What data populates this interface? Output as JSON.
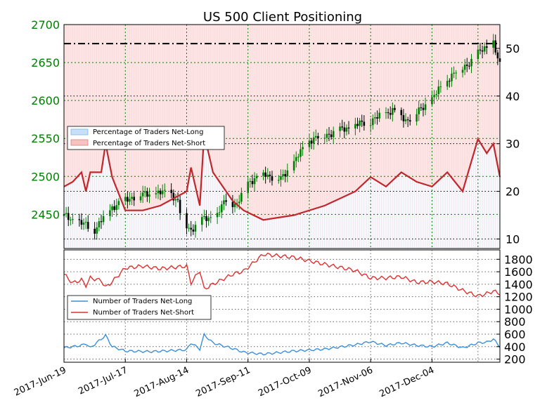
{
  "chart_data": [
    {
      "type": "candlestick",
      "title": "US 500 Client Positioning",
      "y_left": {
        "ticks": [
          2450,
          2500,
          2550,
          2600,
          2650,
          2700
        ],
        "ylim": [
          2405,
          2700
        ]
      },
      "y_right": {
        "ticks": [
          10,
          20,
          30,
          40,
          50
        ],
        "ylim": [
          8,
          55
        ]
      },
      "x_ticks": [
        "2017-Jun-19",
        "2017-Jul-17",
        "2017-Aug-14",
        "2017-Sep-11",
        "2017-Oct-09",
        "2017-Nov-06",
        "2017-Dec-04"
      ],
      "reference_line": 51,
      "legend": [
        "Percentage of Traders Net-Long",
        "Percentage of Traders Net-Short"
      ],
      "legend_position": "center-left",
      "grid": true,
      "colors": {
        "price_axis": "#008000",
        "net_short": "#c0272d",
        "net_long_fill": "#dce8f8",
        "net_short_fill": "#fde5e5",
        "candle_up": "#008000",
        "candle_down": "#000000"
      },
      "price_close_series": [
        {
          "day": 0,
          "close": 2448
        },
        {
          "day": 14,
          "close": 2430
        },
        {
          "day": 22,
          "close": 2460
        },
        {
          "day": 32,
          "close": 2474
        },
        {
          "day": 42,
          "close": 2478
        },
        {
          "day": 49,
          "close": 2478
        },
        {
          "day": 52,
          "close": 2466
        },
        {
          "day": 54,
          "close": 2440
        },
        {
          "day": 58,
          "close": 2430
        },
        {
          "day": 62,
          "close": 2442
        },
        {
          "day": 70,
          "close": 2449
        },
        {
          "day": 74,
          "close": 2470
        },
        {
          "day": 79,
          "close": 2462
        },
        {
          "day": 84,
          "close": 2493
        },
        {
          "day": 92,
          "close": 2503
        },
        {
          "day": 99,
          "close": 2496
        },
        {
          "day": 105,
          "close": 2519
        },
        {
          "day": 112,
          "close": 2548
        },
        {
          "day": 126,
          "close": 2561
        },
        {
          "day": 140,
          "close": 2573
        },
        {
          "day": 150,
          "close": 2588
        },
        {
          "day": 156,
          "close": 2574
        },
        {
          "day": 161,
          "close": 2583
        },
        {
          "day": 168,
          "close": 2602
        },
        {
          "day": 175,
          "close": 2628
        },
        {
          "day": 180,
          "close": 2640
        },
        {
          "day": 186,
          "close": 2652
        },
        {
          "day": 191,
          "close": 2668
        },
        {
          "day": 196,
          "close": 2678
        },
        {
          "day": 198,
          "close": 2650
        }
      ],
      "net_short_pct_series": [
        {
          "day": 0,
          "close": 21
        },
        {
          "day": 4,
          "close": 22
        },
        {
          "day": 8,
          "close": 24
        },
        {
          "day": 10,
          "close": 20
        },
        {
          "day": 12,
          "close": 24
        },
        {
          "day": 17,
          "close": 24
        },
        {
          "day": 19,
          "close": 30
        },
        {
          "day": 22,
          "close": 23
        },
        {
          "day": 28,
          "close": 16
        },
        {
          "day": 36,
          "close": 16
        },
        {
          "day": 44,
          "close": 17
        },
        {
          "day": 56,
          "close": 20
        },
        {
          "day": 58,
          "close": 25
        },
        {
          "day": 62,
          "close": 17
        },
        {
          "day": 64,
          "close": 32
        },
        {
          "day": 68,
          "close": 24
        },
        {
          "day": 77,
          "close": 18
        },
        {
          "day": 82,
          "close": 16
        },
        {
          "day": 91,
          "close": 14
        },
        {
          "day": 105,
          "close": 15
        },
        {
          "day": 119,
          "close": 17
        },
        {
          "day": 133,
          "close": 20
        },
        {
          "day": 140,
          "close": 23
        },
        {
          "day": 147,
          "close": 21
        },
        {
          "day": 154,
          "close": 24
        },
        {
          "day": 161,
          "close": 22
        },
        {
          "day": 168,
          "close": 21
        },
        {
          "day": 175,
          "close": 24
        },
        {
          "day": 182,
          "close": 20
        },
        {
          "day": 189,
          "close": 31
        },
        {
          "day": 193,
          "close": 28
        },
        {
          "day": 196,
          "close": 30
        },
        {
          "day": 199,
          "close": 23
        }
      ],
      "x_domain_days": [
        0,
        199
      ]
    },
    {
      "type": "line",
      "y_ticks": [
        200,
        400,
        600,
        800,
        1000,
        1200,
        1400,
        1600,
        1800
      ],
      "ylim": [
        150,
        1950
      ],
      "x_ticks": [
        "2017-Jun-19",
        "2017-Jul-17",
        "2017-Aug-14",
        "2017-Sep-11",
        "2017-Oct-09",
        "2017-Nov-06",
        "2017-Dec-04"
      ],
      "legend": [
        "Number of Traders Net-Long",
        "Number of Traders Net-Short"
      ],
      "legend_position": "center-left",
      "grid": true,
      "x_domain_days": [
        0,
        199
      ],
      "series": [
        {
          "name": "Number of Traders Net-Long",
          "color": "#3a8fdc",
          "points": [
            {
              "day": 0,
              "value": 380
            },
            {
              "day": 8,
              "value": 420
            },
            {
              "day": 10,
              "value": 450
            },
            {
              "day": 12,
              "value": 380
            },
            {
              "day": 19,
              "value": 580
            },
            {
              "day": 22,
              "value": 400
            },
            {
              "day": 28,
              "value": 330
            },
            {
              "day": 40,
              "value": 320
            },
            {
              "day": 56,
              "value": 350
            },
            {
              "day": 58,
              "value": 460
            },
            {
              "day": 62,
              "value": 360
            },
            {
              "day": 64,
              "value": 590
            },
            {
              "day": 68,
              "value": 460
            },
            {
              "day": 77,
              "value": 370
            },
            {
              "day": 82,
              "value": 310
            },
            {
              "day": 91,
              "value": 280
            },
            {
              "day": 105,
              "value": 330
            },
            {
              "day": 119,
              "value": 360
            },
            {
              "day": 133,
              "value": 430
            },
            {
              "day": 140,
              "value": 480
            },
            {
              "day": 147,
              "value": 420
            },
            {
              "day": 154,
              "value": 460
            },
            {
              "day": 161,
              "value": 420
            },
            {
              "day": 168,
              "value": 400
            },
            {
              "day": 175,
              "value": 460
            },
            {
              "day": 182,
              "value": 380
            },
            {
              "day": 189,
              "value": 460
            },
            {
              "day": 193,
              "value": 470
            },
            {
              "day": 196,
              "value": 520
            },
            {
              "day": 199,
              "value": 400
            }
          ]
        },
        {
          "name": "Number of Traders Net-Short",
          "color": "#e03030",
          "points": [
            {
              "day": 0,
              "value": 1560
            },
            {
              "day": 4,
              "value": 1420
            },
            {
              "day": 8,
              "value": 1470
            },
            {
              "day": 10,
              "value": 1380
            },
            {
              "day": 12,
              "value": 1500
            },
            {
              "day": 17,
              "value": 1460
            },
            {
              "day": 19,
              "value": 1350
            },
            {
              "day": 22,
              "value": 1440
            },
            {
              "day": 28,
              "value": 1660
            },
            {
              "day": 36,
              "value": 1690
            },
            {
              "day": 44,
              "value": 1650
            },
            {
              "day": 56,
              "value": 1690
            },
            {
              "day": 58,
              "value": 1420
            },
            {
              "day": 62,
              "value": 1620
            },
            {
              "day": 64,
              "value": 1320
            },
            {
              "day": 68,
              "value": 1400
            },
            {
              "day": 77,
              "value": 1560
            },
            {
              "day": 82,
              "value": 1610
            },
            {
              "day": 91,
              "value": 1880
            },
            {
              "day": 105,
              "value": 1830
            },
            {
              "day": 119,
              "value": 1720
            },
            {
              "day": 133,
              "value": 1620
            },
            {
              "day": 140,
              "value": 1500
            },
            {
              "day": 147,
              "value": 1500
            },
            {
              "day": 154,
              "value": 1520
            },
            {
              "day": 161,
              "value": 1430
            },
            {
              "day": 168,
              "value": 1440
            },
            {
              "day": 175,
              "value": 1410
            },
            {
              "day": 182,
              "value": 1300
            },
            {
              "day": 189,
              "value": 1210
            },
            {
              "day": 193,
              "value": 1250
            },
            {
              "day": 196,
              "value": 1290
            },
            {
              "day": 199,
              "value": 1250
            }
          ]
        }
      ]
    }
  ]
}
